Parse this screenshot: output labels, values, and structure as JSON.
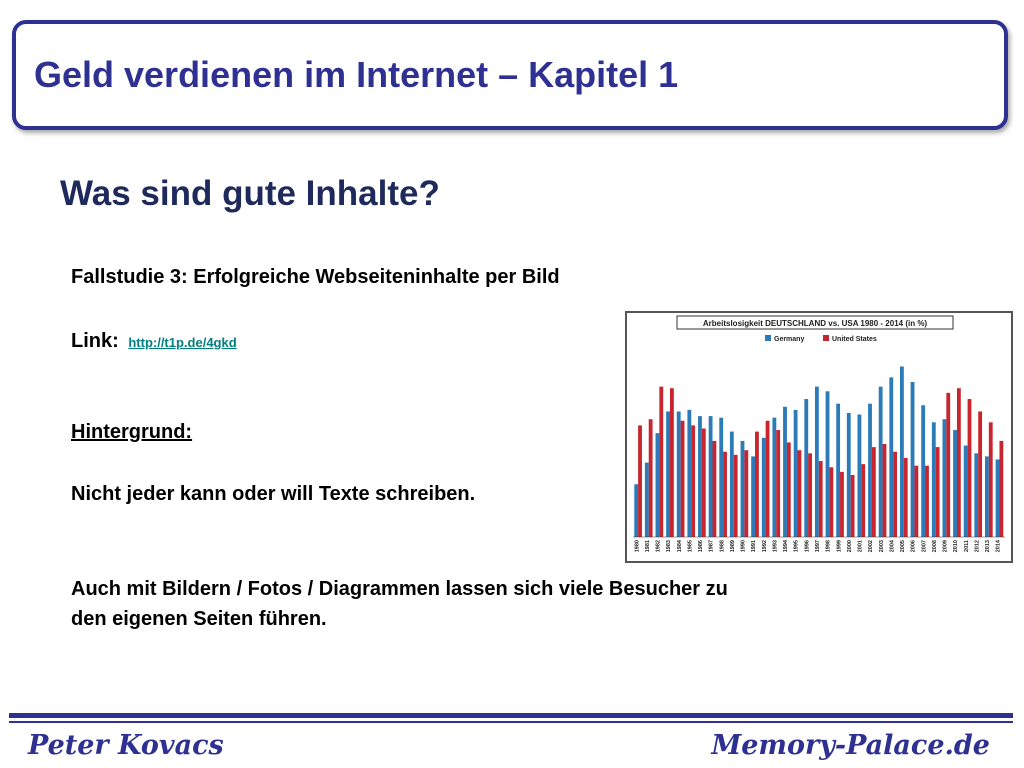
{
  "header": {
    "title": "Geld verdienen im Internet – Kapitel 1"
  },
  "content": {
    "subtitle": "Was sind gute Inhalte?",
    "case_study": "Fallstudie 3: Erfolgreiche Webseiteninhalte per Bild",
    "link_label": "Link:",
    "link_url": "http://t1p.de/4gkd",
    "background_heading": "Hintergrund:",
    "paragraph1": "Nicht jeder kann oder will Texte schreiben.",
    "paragraph2_line1": "Auch mit Bildern / Fotos  / Diagrammen lassen sich viele Besucher zu",
    "paragraph2_line2": "den eigenen Seiten führen."
  },
  "footer": {
    "author": "Peter Kovacs",
    "site": "Memory-Palace.de"
  },
  "chart_data": {
    "type": "bar",
    "title": "Arbeitslosigkeit DEUTSCHLAND vs. USA 1980 - 2014 (in %)",
    "categories": [
      "1980",
      "1981",
      "1982",
      "1983",
      "1984",
      "1985",
      "1986",
      "1987",
      "1988",
      "1989",
      "1990",
      "1991",
      "1992",
      "1993",
      "1994",
      "1995",
      "1996",
      "1997",
      "1998",
      "1999",
      "2000",
      "2001",
      "2002",
      "2003",
      "2004",
      "2005",
      "2006",
      "2007",
      "2008",
      "2009",
      "2010",
      "2011",
      "2012",
      "2013",
      "2014"
    ],
    "series": [
      {
        "name": "Germany",
        "color": "#2b7bb9",
        "values": [
          3.4,
          4.8,
          6.7,
          8.1,
          8.1,
          8.2,
          7.8,
          7.8,
          7.7,
          6.8,
          6.2,
          5.2,
          6.4,
          7.7,
          8.4,
          8.2,
          8.9,
          9.7,
          9.4,
          8.6,
          8.0,
          7.9,
          8.6,
          9.7,
          10.3,
          11.0,
          10.0,
          8.5,
          7.4,
          7.6,
          6.9,
          5.9,
          5.4,
          5.2,
          5.0
        ]
      },
      {
        "name": "United States",
        "color": "#c8262f",
        "values": [
          7.2,
          7.6,
          9.7,
          9.6,
          7.5,
          7.2,
          7.0,
          6.2,
          5.5,
          5.3,
          5.6,
          6.8,
          7.5,
          6.9,
          6.1,
          5.6,
          5.4,
          4.9,
          4.5,
          4.2,
          4.0,
          4.7,
          5.8,
          6.0,
          5.5,
          5.1,
          4.6,
          4.6,
          5.8,
          9.3,
          9.6,
          8.9,
          8.1,
          7.4,
          6.2
        ]
      }
    ],
    "legend": "top-center",
    "grid": false,
    "ylim": [
      0,
      12
    ]
  }
}
